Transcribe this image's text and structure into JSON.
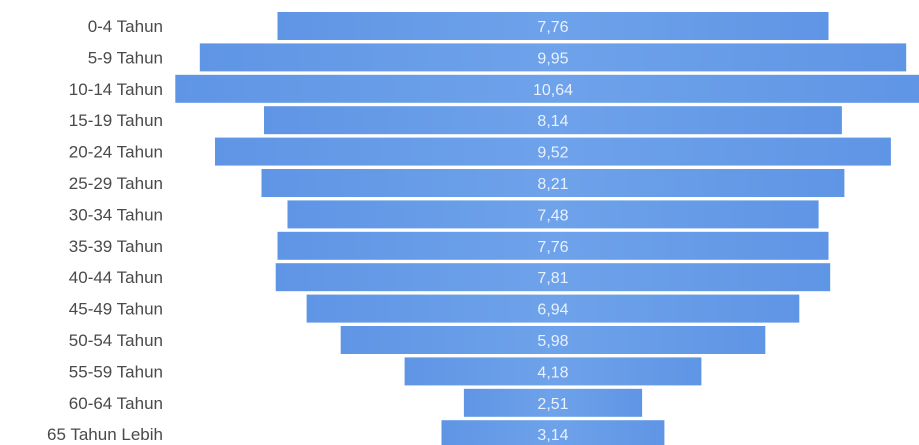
{
  "chart_data": {
    "type": "bar",
    "orientation": "horizontal-centered",
    "title": "",
    "xlabel": "",
    "ylabel": "",
    "categories": [
      "0-4 Tahun",
      "5-9 Tahun",
      "10-14 Tahun",
      "15-19 Tahun",
      "20-24 Tahun",
      "25-29 Tahun",
      "30-34 Tahun",
      "35-39 Tahun",
      "40-44 Tahun",
      "45-49 Tahun",
      "50-54 Tahun",
      "55-59 Tahun",
      "60-64 Tahun",
      "65 Tahun Lebih"
    ],
    "values": [
      7.76,
      9.95,
      10.64,
      8.14,
      9.52,
      8.21,
      7.48,
      7.76,
      7.81,
      6.94,
      5.98,
      4.18,
      2.51,
      3.14
    ],
    "value_labels": [
      "7,76",
      "9,95",
      "10,64",
      "8,14",
      "9,52",
      "8,21",
      "7,48",
      "7,76",
      "7,81",
      "6,94",
      "5,98",
      "4,18",
      "2,51",
      "3,14"
    ],
    "grid": false,
    "legend": "none",
    "colors": {
      "bar": "#6a9ee8",
      "value_text": "#e8f1ff",
      "category_text": "#4a4a4a"
    }
  }
}
